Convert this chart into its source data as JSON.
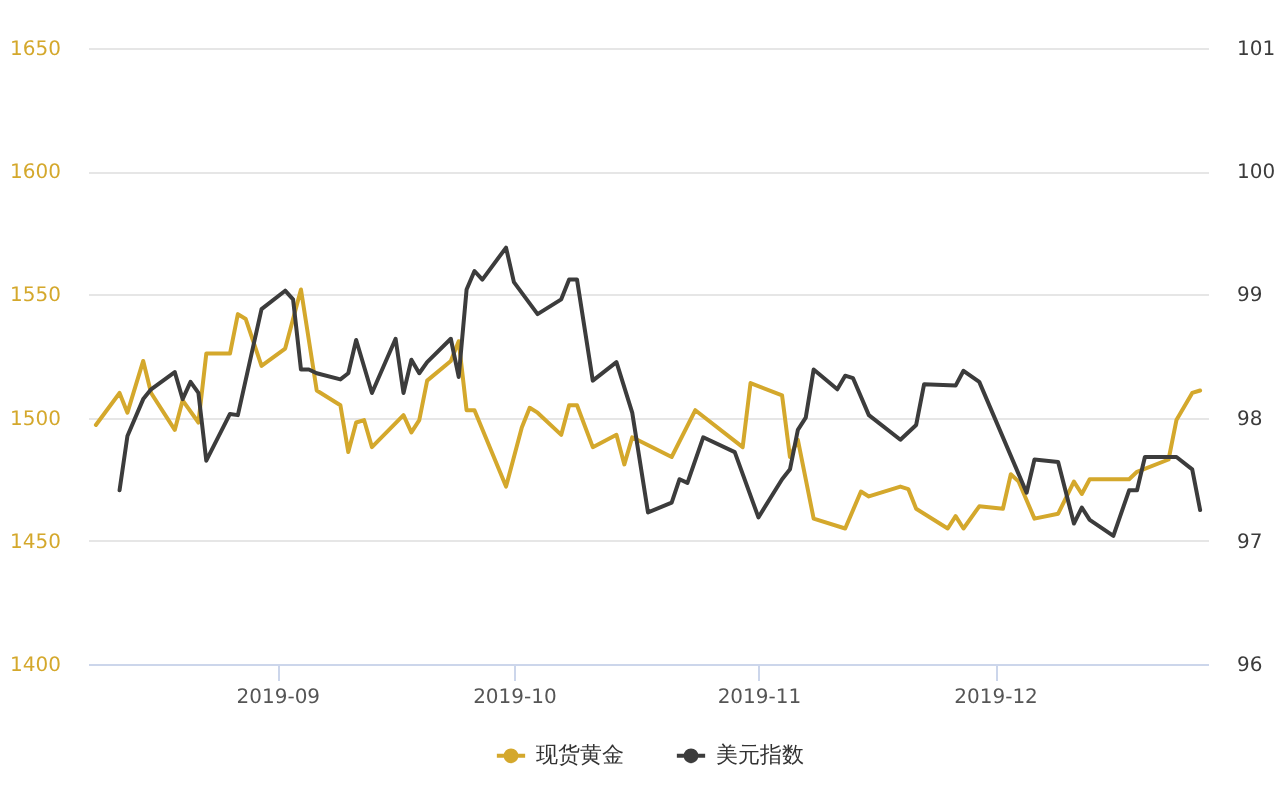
{
  "chart_data": {
    "type": "line",
    "series": [
      {
        "name": "现货黄金",
        "color": "#d4a82c",
        "x": [
          "2019-08-09",
          "2019-08-12",
          "2019-08-13",
          "2019-08-15",
          "2019-08-16",
          "2019-08-19",
          "2019-08-20",
          "2019-08-22",
          "2019-08-23",
          "2019-08-26",
          "2019-08-27",
          "2019-08-28",
          "2019-08-30",
          "2019-09-02",
          "2019-09-04",
          "2019-09-06",
          "2019-09-09",
          "2019-09-10",
          "2019-09-11",
          "2019-09-12",
          "2019-09-13",
          "2019-09-17",
          "2019-09-18",
          "2019-09-19",
          "2019-09-20",
          "2019-09-23",
          "2019-09-24",
          "2019-09-25",
          "2019-09-26",
          "2019-09-30",
          "2019-10-02",
          "2019-10-03",
          "2019-10-04",
          "2019-10-07",
          "2019-10-08",
          "2019-10-09",
          "2019-10-11",
          "2019-10-14",
          "2019-10-15",
          "2019-10-16",
          "2019-10-21",
          "2019-10-24",
          "2019-10-30",
          "2019-10-31",
          "2019-11-04",
          "2019-11-05",
          "2019-11-06",
          "2019-11-08",
          "2019-11-12",
          "2019-11-14",
          "2019-11-15",
          "2019-11-19",
          "2019-11-20",
          "2019-11-21",
          "2019-11-25",
          "2019-11-26",
          "2019-11-27",
          "2019-11-29",
          "2019-12-02",
          "2019-12-03",
          "2019-12-04",
          "2019-12-06",
          "2019-12-09",
          "2019-12-11",
          "2019-12-12",
          "2019-12-13",
          "2019-12-18",
          "2019-12-19",
          "2019-12-23",
          "2019-12-24",
          "2019-12-26",
          "2019-12-27"
        ],
        "values": [
          1497,
          1510,
          1502,
          1523,
          1510,
          1495,
          1507,
          1498,
          1526,
          1526,
          1542,
          1540,
          1521,
          1528,
          1552,
          1511,
          1505,
          1486,
          1498,
          1499,
          1488,
          1501,
          1494,
          1499,
          1515,
          1523,
          1531,
          1503,
          1503,
          1472,
          1496,
          1504,
          1502,
          1493,
          1505,
          1505,
          1488,
          1493,
          1481,
          1492,
          1484,
          1503,
          1488,
          1514,
          1509,
          1484,
          1491,
          1459,
          1455,
          1470,
          1468,
          1472,
          1471,
          1463,
          1455,
          1460,
          1455,
          1464,
          1463,
          1477,
          1474,
          1459,
          1461,
          1474,
          1469,
          1475,
          1475,
          1478,
          1483,
          1499,
          1510,
          1511
        ]
      },
      {
        "name": "美元指数",
        "color": "#3c3c3c",
        "axis": "y2",
        "x": [
          "2019-08-12",
          "2019-08-13",
          "2019-08-15",
          "2019-08-16",
          "2019-08-19",
          "2019-08-20",
          "2019-08-21",
          "2019-08-22",
          "2019-08-23",
          "2019-08-26",
          "2019-08-27",
          "2019-08-30",
          "2019-09-02",
          "2019-09-03",
          "2019-09-04",
          "2019-09-05",
          "2019-09-06",
          "2019-09-09",
          "2019-09-10",
          "2019-09-11",
          "2019-09-13",
          "2019-09-16",
          "2019-09-17",
          "2019-09-18",
          "2019-09-19",
          "2019-09-20",
          "2019-09-23",
          "2019-09-24",
          "2019-09-25",
          "2019-09-26",
          "2019-09-27",
          "2019-09-30",
          "2019-10-01",
          "2019-10-04",
          "2019-10-07",
          "2019-10-08",
          "2019-10-09",
          "2019-10-11",
          "2019-10-14",
          "2019-10-16",
          "2019-10-18",
          "2019-10-21",
          "2019-10-22",
          "2019-10-23",
          "2019-10-25",
          "2019-10-29",
          "2019-11-01",
          "2019-11-04",
          "2019-11-05",
          "2019-11-06",
          "2019-11-07",
          "2019-11-08",
          "2019-11-11",
          "2019-11-12",
          "2019-11-13",
          "2019-11-15",
          "2019-11-19",
          "2019-11-21",
          "2019-11-22",
          "2019-11-26",
          "2019-11-27",
          "2019-11-29",
          "2019-12-05",
          "2019-12-06",
          "2019-12-09",
          "2019-12-11",
          "2019-12-12",
          "2019-12-13",
          "2019-12-16",
          "2019-12-18",
          "2019-12-19",
          "2019-12-20",
          "2019-12-24",
          "2019-12-26",
          "2019-12-27"
        ],
        "values": [
          97.41,
          97.85,
          98.15,
          98.23,
          98.37,
          98.15,
          98.29,
          98.2,
          97.65,
          98.03,
          98.02,
          98.88,
          99.03,
          98.96,
          98.39,
          98.39,
          98.36,
          98.31,
          98.36,
          98.63,
          98.2,
          98.64,
          98.2,
          98.47,
          98.36,
          98.45,
          98.64,
          98.33,
          99.04,
          99.19,
          99.12,
          99.38,
          99.1,
          98.84,
          98.96,
          99.12,
          99.12,
          98.3,
          98.45,
          98.04,
          97.23,
          97.31,
          97.5,
          97.47,
          97.84,
          97.72,
          97.19,
          97.5,
          97.58,
          97.9,
          98.0,
          98.39,
          98.23,
          98.34,
          98.32,
          98.02,
          97.82,
          97.94,
          98.27,
          98.26,
          98.38,
          98.29,
          97.39,
          97.66,
          97.64,
          97.14,
          97.27,
          97.17,
          97.04,
          97.41,
          97.41,
          97.68,
          97.68,
          97.58,
          97.25
        ]
      }
    ],
    "xlim": [
      "2019-08-08",
      "2019-12-28"
    ],
    "xticks": [
      "2019-09",
      "2019-10",
      "2019-11",
      "2019-12"
    ],
    "ylim": [
      1400,
      1650
    ],
    "yticks": [
      1400,
      1450,
      1500,
      1550,
      1600,
      1650
    ],
    "y2lim": [
      96,
      101
    ],
    "y2ticks": [
      96,
      97,
      98,
      99,
      100,
      101
    ],
    "grid": "y",
    "legend": "bottom"
  }
}
